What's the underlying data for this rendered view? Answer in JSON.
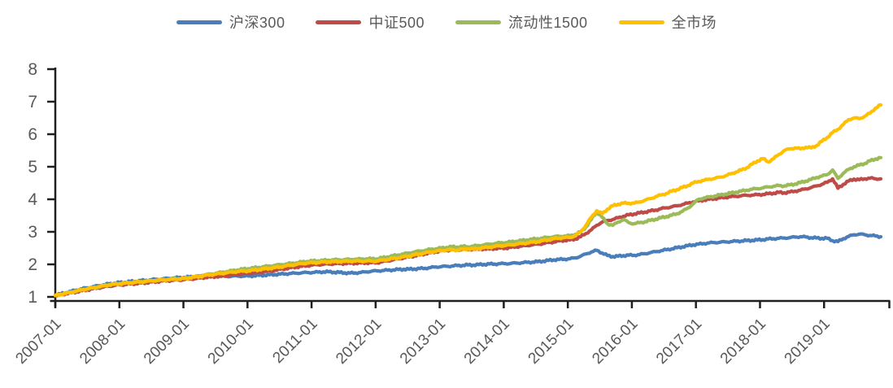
{
  "background": "#ffffff",
  "chart_data": {
    "type": "line",
    "title": "",
    "xlabel": "",
    "ylabel": "",
    "x_start": "2007-01",
    "x_end": "2019-11",
    "x_frequency": "monthly",
    "x_tick_labels": [
      "2007-01",
      "2008-01",
      "2009-01",
      "2010-01",
      "2011-01",
      "2012-01",
      "2013-01",
      "2014-01",
      "2015-01",
      "2016-01",
      "2017-01",
      "2018-01",
      "2019-01"
    ],
    "y_ticks": [
      1,
      2,
      3,
      4,
      5,
      6,
      7,
      8
    ],
    "ylim": [
      1,
      8
    ],
    "grid": false,
    "legend_position": "top-center",
    "axis_color": "#1f1f1f",
    "tick_label_color": "#595959",
    "series": [
      {
        "id": "hs300",
        "name": "沪深300",
        "color": "#4A7EBB",
        "values": [
          1.05,
          1.09,
          1.13,
          1.17,
          1.21,
          1.25,
          1.28,
          1.31,
          1.34,
          1.37,
          1.4,
          1.42,
          1.44,
          1.45,
          1.47,
          1.48,
          1.5,
          1.51,
          1.53,
          1.54,
          1.55,
          1.57,
          1.58,
          1.59,
          1.6,
          1.61,
          1.62,
          1.63,
          1.63,
          1.64,
          1.64,
          1.63,
          1.63,
          1.64,
          1.64,
          1.64,
          1.64,
          1.65,
          1.66,
          1.67,
          1.68,
          1.69,
          1.7,
          1.71,
          1.72,
          1.73,
          1.74,
          1.75,
          1.75,
          1.76,
          1.77,
          1.77,
          1.76,
          1.75,
          1.74,
          1.73,
          1.74,
          1.75,
          1.77,
          1.79,
          1.8,
          1.81,
          1.82,
          1.83,
          1.84,
          1.85,
          1.85,
          1.86,
          1.87,
          1.88,
          1.9,
          1.92,
          1.93,
          1.94,
          1.95,
          1.96,
          1.97,
          1.98,
          1.98,
          1.99,
          2.0,
          2.01,
          2.01,
          2.02,
          2.02,
          2.03,
          2.04,
          2.05,
          2.06,
          2.07,
          2.08,
          2.1,
          2.12,
          2.14,
          2.15,
          2.16,
          2.17,
          2.2,
          2.25,
          2.32,
          2.38,
          2.43,
          2.35,
          2.27,
          2.24,
          2.25,
          2.27,
          2.28,
          2.28,
          2.3,
          2.33,
          2.36,
          2.39,
          2.42,
          2.45,
          2.48,
          2.51,
          2.54,
          2.57,
          2.6,
          2.62,
          2.64,
          2.66,
          2.67,
          2.68,
          2.69,
          2.7,
          2.71,
          2.72,
          2.73,
          2.74,
          2.75,
          2.76,
          2.78,
          2.79,
          2.8,
          2.81,
          2.82,
          2.84,
          2.85,
          2.84,
          2.82,
          2.81,
          2.8,
          2.8,
          2.73,
          2.7,
          2.79,
          2.86,
          2.91,
          2.93,
          2.91,
          2.89,
          2.87,
          2.85
        ]
      },
      {
        "id": "zz500",
        "name": "中证500",
        "color": "#BE4B48",
        "values": [
          1.04,
          1.07,
          1.1,
          1.13,
          1.16,
          1.19,
          1.22,
          1.25,
          1.28,
          1.3,
          1.33,
          1.35,
          1.37,
          1.38,
          1.4,
          1.41,
          1.43,
          1.44,
          1.46,
          1.47,
          1.49,
          1.5,
          1.51,
          1.52,
          1.53,
          1.55,
          1.56,
          1.58,
          1.6,
          1.61,
          1.63,
          1.64,
          1.66,
          1.68,
          1.69,
          1.71,
          1.72,
          1.74,
          1.76,
          1.78,
          1.8,
          1.82,
          1.85,
          1.87,
          1.9,
          1.92,
          1.94,
          1.96,
          1.98,
          1.99,
          2.0,
          2.01,
          2.02,
          2.02,
          2.03,
          2.03,
          2.04,
          2.04,
          2.05,
          2.05,
          2.05,
          2.08,
          2.11,
          2.14,
          2.17,
          2.2,
          2.23,
          2.26,
          2.29,
          2.33,
          2.36,
          2.39,
          2.42,
          2.43,
          2.45,
          2.44,
          2.46,
          2.45,
          2.47,
          2.46,
          2.48,
          2.47,
          2.49,
          2.5,
          2.5,
          2.52,
          2.54,
          2.56,
          2.58,
          2.6,
          2.62,
          2.64,
          2.67,
          2.69,
          2.72,
          2.74,
          2.75,
          2.78,
          2.85,
          2.95,
          3.06,
          3.2,
          3.3,
          3.35,
          3.38,
          3.43,
          3.48,
          3.52,
          3.55,
          3.58,
          3.61,
          3.64,
          3.67,
          3.71,
          3.74,
          3.77,
          3.8,
          3.84,
          3.88,
          3.92,
          3.95,
          3.98,
          4.0,
          4.02,
          4.04,
          4.06,
          4.08,
          4.09,
          4.11,
          4.12,
          4.13,
          4.14,
          4.15,
          4.17,
          4.19,
          4.21,
          4.2,
          4.22,
          4.25,
          4.28,
          4.32,
          4.36,
          4.41,
          4.46,
          4.52,
          4.63,
          4.34,
          4.46,
          4.56,
          4.62,
          4.6,
          4.63,
          4.65,
          4.63,
          4.63
        ]
      },
      {
        "id": "liquidity1500",
        "name": "流动性1500",
        "color": "#9BBB59",
        "values": [
          1.04,
          1.08,
          1.11,
          1.15,
          1.18,
          1.22,
          1.25,
          1.28,
          1.31,
          1.34,
          1.37,
          1.39,
          1.4,
          1.42,
          1.43,
          1.45,
          1.46,
          1.48,
          1.49,
          1.51,
          1.52,
          1.54,
          1.55,
          1.56,
          1.57,
          1.6,
          1.62,
          1.65,
          1.68,
          1.7,
          1.73,
          1.75,
          1.78,
          1.8,
          1.83,
          1.85,
          1.87,
          1.89,
          1.91,
          1.93,
          1.95,
          1.97,
          1.99,
          2.01,
          2.03,
          2.05,
          2.07,
          2.09,
          2.1,
          2.11,
          2.12,
          2.13,
          2.14,
          2.14,
          2.15,
          2.15,
          2.16,
          2.16,
          2.17,
          2.17,
          2.17,
          2.2,
          2.23,
          2.26,
          2.29,
          2.32,
          2.35,
          2.38,
          2.41,
          2.43,
          2.46,
          2.48,
          2.5,
          2.52,
          2.54,
          2.53,
          2.55,
          2.54,
          2.56,
          2.58,
          2.6,
          2.62,
          2.64,
          2.66,
          2.67,
          2.69,
          2.71,
          2.73,
          2.75,
          2.77,
          2.79,
          2.81,
          2.83,
          2.85,
          2.86,
          2.87,
          2.88,
          2.92,
          3.0,
          3.15,
          3.38,
          3.62,
          3.45,
          3.25,
          3.2,
          3.3,
          3.38,
          3.28,
          3.25,
          3.28,
          3.31,
          3.35,
          3.39,
          3.43,
          3.47,
          3.51,
          3.56,
          3.63,
          3.73,
          3.86,
          4.0,
          4.04,
          4.07,
          4.1,
          4.13,
          4.16,
          4.19,
          4.22,
          4.25,
          4.28,
          4.31,
          4.33,
          4.35,
          4.38,
          4.4,
          4.42,
          4.41,
          4.44,
          4.47,
          4.51,
          4.56,
          4.61,
          4.67,
          4.71,
          4.76,
          4.9,
          4.64,
          4.8,
          4.92,
          5.0,
          5.05,
          5.1,
          5.18,
          5.24,
          5.28
        ]
      },
      {
        "id": "whole-market",
        "name": "全市场",
        "color": "#FFC000",
        "values": [
          1.04,
          1.08,
          1.11,
          1.15,
          1.18,
          1.22,
          1.25,
          1.28,
          1.31,
          1.34,
          1.37,
          1.39,
          1.41,
          1.42,
          1.44,
          1.45,
          1.47,
          1.48,
          1.5,
          1.51,
          1.52,
          1.53,
          1.54,
          1.55,
          1.56,
          1.58,
          1.61,
          1.63,
          1.66,
          1.68,
          1.7,
          1.72,
          1.74,
          1.76,
          1.78,
          1.79,
          1.8,
          1.82,
          1.84,
          1.86,
          1.88,
          1.9,
          1.92,
          1.95,
          1.97,
          2.0,
          2.02,
          2.04,
          2.05,
          2.06,
          2.07,
          2.08,
          2.08,
          2.09,
          2.09,
          2.1,
          2.1,
          2.1,
          2.1,
          2.1,
          2.1,
          2.13,
          2.15,
          2.18,
          2.2,
          2.23,
          2.26,
          2.29,
          2.32,
          2.35,
          2.38,
          2.4,
          2.42,
          2.44,
          2.45,
          2.44,
          2.46,
          2.48,
          2.47,
          2.49,
          2.51,
          2.53,
          2.55,
          2.57,
          2.58,
          2.6,
          2.62,
          2.64,
          2.66,
          2.68,
          2.7,
          2.73,
          2.76,
          2.79,
          2.81,
          2.82,
          2.83,
          2.88,
          3.0,
          3.2,
          3.45,
          3.65,
          3.55,
          3.7,
          3.8,
          3.85,
          3.88,
          3.88,
          3.88,
          3.92,
          3.97,
          4.02,
          4.08,
          4.13,
          4.18,
          4.25,
          4.3,
          4.36,
          4.42,
          4.5,
          4.55,
          4.58,
          4.62,
          4.64,
          4.68,
          4.72,
          4.78,
          4.84,
          4.9,
          4.97,
          5.08,
          5.18,
          5.25,
          5.15,
          5.25,
          5.38,
          5.5,
          5.55,
          5.58,
          5.55,
          5.6,
          5.58,
          5.65,
          5.78,
          5.9,
          6.05,
          6.15,
          6.3,
          6.45,
          6.5,
          6.48,
          6.55,
          6.65,
          6.8,
          6.9
        ]
      }
    ]
  }
}
